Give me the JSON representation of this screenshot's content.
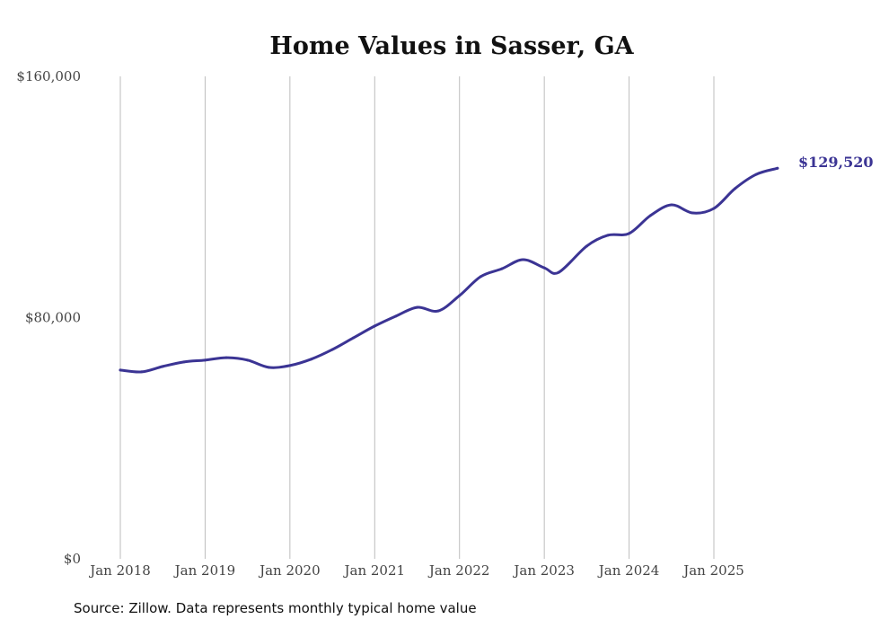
{
  "chart_data": {
    "type": "line",
    "title": "Home Values in Sasser, GA",
    "xlabel": "",
    "ylabel": "",
    "ylim": [
      0,
      160000
    ],
    "xlim": [
      2018.0,
      2025.75
    ],
    "y_ticks": [
      0,
      80000,
      160000
    ],
    "y_tick_labels": [
      "$0",
      "$80,000",
      "$160,000"
    ],
    "x_ticks": [
      2018,
      2019,
      2020,
      2021,
      2022,
      2023,
      2024,
      2025
    ],
    "x_tick_labels": [
      "Jan 2018",
      "Jan 2019",
      "Jan 2020",
      "Jan 2021",
      "Jan 2022",
      "Jan 2023",
      "Jan 2024",
      "Jan 2025"
    ],
    "grid": "vertical",
    "color": "#3b3494",
    "series": [
      {
        "name": "Typical home value",
        "x": [
          2018.0,
          2018.25,
          2018.5,
          2018.75,
          2019.0,
          2019.25,
          2019.5,
          2019.75,
          2020.0,
          2020.25,
          2020.5,
          2020.75,
          2021.0,
          2021.25,
          2021.5,
          2021.75,
          2022.0,
          2022.25,
          2022.5,
          2022.75,
          2023.0,
          2023.17,
          2023.5,
          2023.75,
          2024.0,
          2024.25,
          2024.5,
          2024.75,
          2025.0,
          2025.25,
          2025.5,
          2025.75
        ],
        "values": [
          62600,
          62000,
          63800,
          65300,
          65900,
          66700,
          65900,
          63500,
          64100,
          66200,
          69400,
          73300,
          77200,
          80500,
          83400,
          82200,
          87300,
          93600,
          96200,
          99200,
          96500,
          95000,
          103700,
          107300,
          107900,
          113800,
          117400,
          114700,
          116200,
          122800,
          127500,
          129520
        ]
      }
    ],
    "end_label": "$129,520"
  },
  "source": "Source: Zillow. Data represents monthly typical home value"
}
